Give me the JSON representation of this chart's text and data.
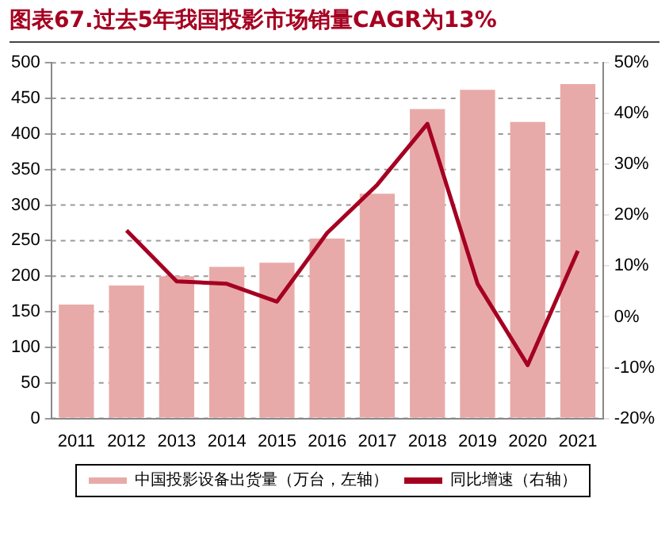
{
  "chart_data": {
    "type": "bar",
    "title": "图表67.过去5年我国投影市场销量CAGR为13%",
    "categories": [
      "2011",
      "2012",
      "2013",
      "2014",
      "2015",
      "2016",
      "2017",
      "2018",
      "2019",
      "2020",
      "2021"
    ],
    "series": [
      {
        "name": "中国投影设备出货量（万台，左轴）",
        "color": "#e8aaa8",
        "values": [
          160,
          187,
          200,
          213,
          219,
          253,
          316,
          435,
          462,
          417,
          470
        ]
      },
      {
        "name": "同比增速（右轴）",
        "type": "line",
        "axis": "y2",
        "color": "#a50021",
        "values": [
          null,
          17,
          7,
          6.5,
          3,
          16.5,
          26,
          38,
          6.5,
          -9.5,
          13
        ]
      }
    ],
    "ylim": [
      0,
      500
    ],
    "yticks": [
      0,
      50,
      100,
      150,
      200,
      250,
      300,
      350,
      400,
      450,
      500
    ],
    "y2lim": [
      -20,
      50
    ],
    "y2ticks": [
      {
        "value": -20,
        "label": "-20%"
      },
      {
        "value": -10,
        "label": "-10%"
      },
      {
        "value": 0,
        "label": "0%"
      },
      {
        "value": 10,
        "label": "10%"
      },
      {
        "value": 20,
        "label": "20%"
      },
      {
        "value": 30,
        "label": "30%"
      },
      {
        "value": 40,
        "label": "40%"
      },
      {
        "value": 50,
        "label": "50%"
      }
    ],
    "grid": "y",
    "legend": "bottom",
    "marker": "none",
    "line_style": "solid"
  }
}
